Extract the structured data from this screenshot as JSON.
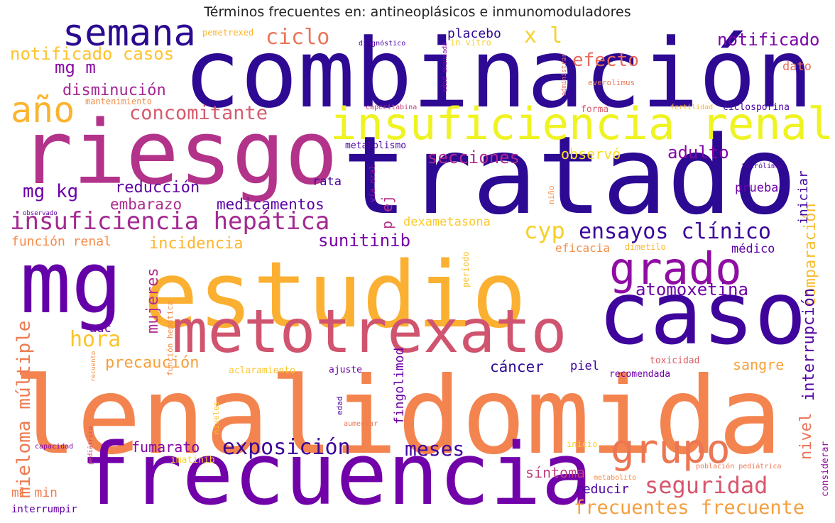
{
  "chart_data": {
    "type": "wordcloud",
    "title": "Términos frecuentes en: antineoplásicos e inmunomoduladores",
    "colormap": "plasma",
    "words": [
      {
        "text": "combinación",
        "color": "#2e0a94",
        "weight": 100
      },
      {
        "text": "lenalidomida",
        "color": "#f3844f",
        "weight": 98
      },
      {
        "text": "frecuencia",
        "color": "#7101a8",
        "weight": 85
      },
      {
        "text": "riesgo",
        "color": "#b3338a",
        "weight": 90
      },
      {
        "text": "tratado",
        "color": "#2d0a93",
        "weight": 85
      },
      {
        "text": "mg",
        "color": "#6400a7",
        "weight": 75
      },
      {
        "text": "estudio",
        "color": "#fbb032",
        "weight": 80
      },
      {
        "text": "caso",
        "color": "#3e049c",
        "weight": 72
      },
      {
        "text": "metotrexato",
        "color": "#d0546f",
        "weight": 65
      },
      {
        "text": "insuficiencia renal",
        "color": "#eff321",
        "weight": 55
      },
      {
        "text": "grado",
        "color": "#8f0da3",
        "weight": 50
      },
      {
        "text": "grupo",
        "color": "#ec7653",
        "weight": 48
      },
      {
        "text": "semana",
        "color": "#2b0a90",
        "weight": 44
      },
      {
        "text": "año",
        "color": "#fbb42f",
        "weight": 40
      },
      {
        "text": "insuficiencia hepática",
        "color": "#a42a92",
        "weight": 34
      },
      {
        "text": "ensayos clínico",
        "color": "#3b049a",
        "weight": 28
      },
      {
        "text": "cyp",
        "color": "#f6d029",
        "weight": 27
      },
      {
        "text": "seguridad",
        "color": "#d7566c",
        "weight": 26
      },
      {
        "text": "exposición",
        "color": "#3b049a",
        "weight": 26
      },
      {
        "text": "ciclo",
        "color": "#ea7558",
        "weight": 26
      },
      {
        "text": "hora",
        "color": "#fcc42a",
        "weight": 26
      },
      {
        "text": "frecuentes frecuente",
        "color": "#f59f3f",
        "weight": 25
      },
      {
        "text": "mieloma múltiple",
        "color": "#ee7a51",
        "weight": 24
      },
      {
        "text": "meses",
        "color": "#42049d",
        "weight": 24
      },
      {
        "text": "concomitante",
        "color": "#d55c6e",
        "weight": 24
      },
      {
        "text": "x l",
        "color": "#f7d12a",
        "weight": 24
      },
      {
        "text": "efecto",
        "color": "#e86b5c",
        "weight": 23
      },
      {
        "text": "mg kg",
        "color": "#6c00a8",
        "weight": 23
      },
      {
        "text": "atomoxetina",
        "color": "#6c00a8",
        "weight": 22
      },
      {
        "text": "notificado casos",
        "color": "#fdc32b",
        "weight": 22
      },
      {
        "text": "mg m",
        "color": "#8a0ba5",
        "weight": 22
      },
      {
        "text": "notificado",
        "color": "#7a03a8",
        "weight": 22
      },
      {
        "text": "secciones",
        "color": "#b12a90",
        "weight": 21
      },
      {
        "text": "adulto",
        "color": "#8606a6",
        "weight": 21
      },
      {
        "text": "sunitinib",
        "color": "#7701a8",
        "weight": 21
      },
      {
        "text": "comparación",
        "color": "#f8bc2f",
        "weight": 20
      },
      {
        "text": "precaución",
        "color": "#f6a03a",
        "weight": 20
      },
      {
        "text": "reducción",
        "color": "#5c01a6",
        "weight": 19
      },
      {
        "text": "disminución",
        "color": "#a32693",
        "weight": 19
      },
      {
        "text": "interrupción",
        "color": "#5302a3",
        "weight": 19
      },
      {
        "text": "embarazo",
        "color": "#ad2a8e",
        "weight": 18
      },
      {
        "text": "medicamentos",
        "color": "#5c01a6",
        "weight": 18
      },
      {
        "text": "incidencia",
        "color": "#fcb52c",
        "weight": 18
      },
      {
        "text": "mujeres",
        "color": "#b22b8f",
        "weight": 18
      },
      {
        "text": "nivel",
        "color": "#ea7357",
        "weight": 18
      },
      {
        "text": "fumarato",
        "color": "#8606a6",
        "weight": 17
      },
      {
        "text": "síntoma",
        "color": "#c0427c",
        "weight": 17
      },
      {
        "text": "cáncer",
        "color": "#2d0a93",
        "weight": 17
      },
      {
        "text": "sangre",
        "color": "#f6a03a",
        "weight": 17
      },
      {
        "text": "placebo",
        "color": "#2d0a93",
        "weight": 16
      },
      {
        "text": "función renal",
        "color": "#f48b49",
        "weight": 16
      },
      {
        "text": "observó",
        "color": "#fcdf25",
        "weight": 16
      },
      {
        "text": "iniciar",
        "color": "#3e049c",
        "weight": 16
      },
      {
        "text": "ml min",
        "color": "#f17c4f",
        "weight": 15
      },
      {
        "text": "reducir",
        "color": "#4b03a1",
        "weight": 15
      },
      {
        "text": "p ej",
        "color": "#b83289",
        "weight": 15
      },
      {
        "text": "dexametasona",
        "color": "#fbca2f",
        "weight": 14
      },
      {
        "text": "prueba",
        "color": "#6a00a8",
        "weight": 14
      },
      {
        "text": "rata",
        "color": "#42049d",
        "weight": 14
      },
      {
        "text": "auc",
        "color": "#6a00a8",
        "weight": 14
      },
      {
        "text": "piel",
        "color": "#3b049a",
        "weight": 14
      },
      {
        "text": "fingolimod",
        "color": "#6e00a8",
        "weight": 14
      },
      {
        "text": "dato",
        "color": "#e8705c",
        "weight": 14
      },
      {
        "text": "eficacia",
        "color": "#f48e47",
        "weight": 14
      },
      {
        "text": "médico",
        "color": "#5c01a6",
        "weight": 14
      },
      {
        "text": "interrumpir",
        "color": "#6300a7",
        "weight": 13
      },
      {
        "text": "mantenimiento",
        "color": "#f08d4a",
        "weight": 11
      },
      {
        "text": "pemetrexed",
        "color": "#fcb52c",
        "weight": 11
      },
      {
        "text": "ciclosporina",
        "color": "#4a02a0",
        "weight": 12
      },
      {
        "text": "forma",
        "color": "#da5a6a",
        "weight": 12
      },
      {
        "text": "metabolismo",
        "color": "#4b03a1",
        "weight": 12
      },
      {
        "text": "recomendada",
        "color": "#6e00a8",
        "weight": 12
      },
      {
        "text": "ajuste",
        "color": "#6e00a8",
        "weight": 12
      },
      {
        "text": "toxicidad",
        "color": "#dd5e66",
        "weight": 12
      },
      {
        "text": "imatinib",
        "color": "#fdd12a",
        "weight": 12
      },
      {
        "text": "aclaramiento",
        "color": "#fcc72b",
        "weight": 12
      },
      {
        "text": "considerar",
        "color": "#9511a1",
        "weight": 11
      },
      {
        "text": "diagnóstico",
        "color": "#4b03a1",
        "weight": 10
      },
      {
        "text": "in vitro",
        "color": "#f7d12a",
        "weight": 10
      },
      {
        "text": "edad avanzada",
        "color": "#8606a6",
        "weight": 9
      },
      {
        "text": "administrar",
        "color": "#e8705c",
        "weight": 9
      },
      {
        "text": "everolimus",
        "color": "#ec7853",
        "weight": 10
      },
      {
        "text": "capecitabina",
        "color": "#c13f7c",
        "weight": 9
      },
      {
        "text": "fertilidad",
        "color": "#fcb52c",
        "weight": 9
      },
      {
        "text": "tacrólimus",
        "color": "#4a02a0",
        "weight": 9
      },
      {
        "text": "observado",
        "color": "#6300a7",
        "weight": 8
      },
      {
        "text": "vía oral",
        "color": "#9c179e",
        "weight": 10
      },
      {
        "text": "niño",
        "color": "#f48e47",
        "weight": 10
      },
      {
        "text": "período",
        "color": "#fbc02e",
        "weight": 10
      },
      {
        "text": "dimetilo",
        "color": "#fcb52c",
        "weight": 10
      },
      {
        "text": "función hepática",
        "color": "#f48e47",
        "weight": 10
      },
      {
        "text": "recuento",
        "color": "#f48e47",
        "weight": 8
      },
      {
        "text": "edad",
        "color": "#4b03a1",
        "weight": 10
      },
      {
        "text": "niveles",
        "color": "#fbc02e",
        "weight": 10
      },
      {
        "text": "aumentar",
        "color": "#ec7853",
        "weight": 9
      },
      {
        "text": "pediátrico",
        "color": "#cc4778",
        "weight": 8
      },
      {
        "text": "capacidad",
        "color": "#8606a6",
        "weight": 9
      },
      {
        "text": "inicio",
        "color": "#fcd225",
        "weight": 10
      },
      {
        "text": "metabolito",
        "color": "#f48e47",
        "weight": 9
      },
      {
        "text": "población pediátrica",
        "color": "#ec7853",
        "weight": 9
      }
    ]
  }
}
